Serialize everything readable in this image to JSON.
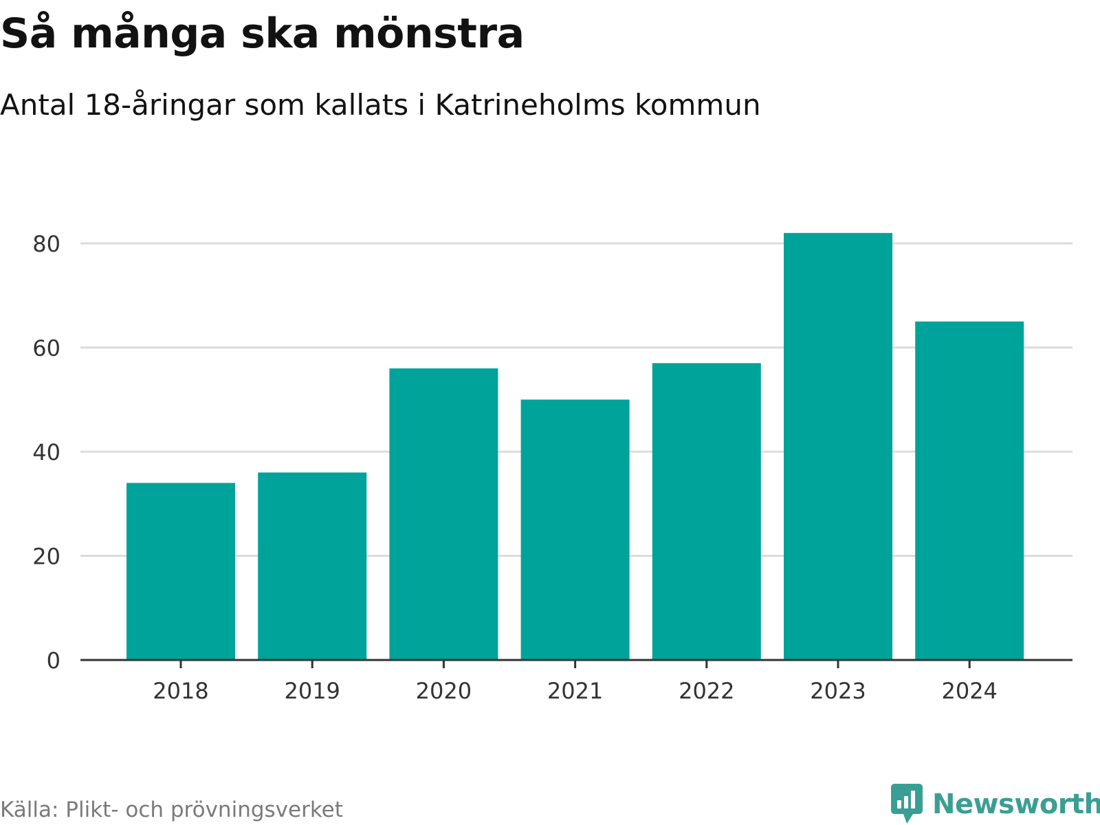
{
  "header": {
    "title": "Så många ska mönstra",
    "subtitle": "Antal 18-åringar som kallats i Katrineholms kommun"
  },
  "footer": {
    "source": "Källa: Plikt- och prövningsverket",
    "brand": "Newsworthy",
    "brand_icon": "bar-chart-speech-bubble-icon"
  },
  "colors": {
    "bar": "#00a39a",
    "grid": "#dcdcdc",
    "axis": "#333333",
    "tick_text": "#333333",
    "brand": "#3b9e94"
  },
  "chart_data": {
    "type": "bar",
    "title": "Så många ska mönstra",
    "subtitle": "Antal 18-åringar som kallats i Katrineholms kommun",
    "xlabel": "",
    "ylabel": "",
    "categories": [
      "2018",
      "2019",
      "2020",
      "2021",
      "2022",
      "2023",
      "2024"
    ],
    "values": [
      34,
      36,
      56,
      50,
      57,
      82,
      65
    ],
    "ylim": [
      0,
      80
    ],
    "yticks": [
      0,
      20,
      40,
      60,
      80
    ],
    "grid": true,
    "legend": "none"
  }
}
